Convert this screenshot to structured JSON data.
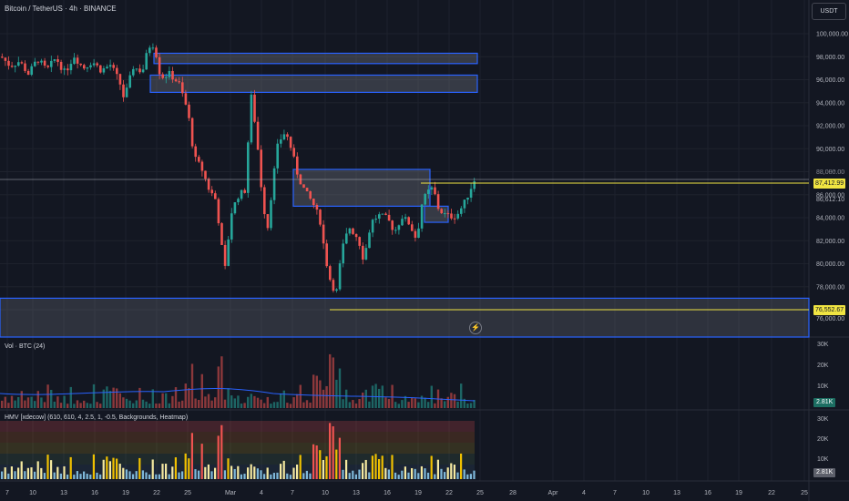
{
  "header": {
    "title": "Bitcoin / TetherUS · 4h · BINANCE",
    "currency_button": "USDT"
  },
  "price_axis": {
    "labels": [
      "100,000.00",
      "98,000.00",
      "96,000.00",
      "94,000.00",
      "92,000.00",
      "90,000.00",
      "88,000.00",
      "86,000.00",
      "84,000.00",
      "82,000.00",
      "80,000.00",
      "78,000.00"
    ],
    "current_price": "87,412.99",
    "hidden_price": "88,086.00",
    "extra_price": "86,612.10",
    "low_price": "76,552.67",
    "lower_label": "76,000.00"
  },
  "volume_pane": {
    "label": "Vol · BTC (24)",
    "axis": [
      "30K",
      "20K",
      "10K"
    ],
    "current": "2.81K"
  },
  "hmv_pane": {
    "label": "HMV [xdecow] (610, 610, 4, 2.5, 1, -0.5, Backgrounds, Heatmap)",
    "axis": [
      "30K",
      "20K",
      "10K"
    ],
    "current": "2.81K"
  },
  "time_axis": {
    "labels": [
      "7",
      "10",
      "13",
      "16",
      "19",
      "22",
      "25",
      "Mar",
      "4",
      "7",
      "10",
      "13",
      "16",
      "19",
      "22",
      "25",
      "28",
      "Apr",
      "4",
      "7",
      "10",
      "13",
      "16",
      "19",
      "22",
      "25"
    ]
  },
  "colors": {
    "up": "#26a69a",
    "down": "#ef5350",
    "zone_border": "#2962ff",
    "price_line": "#f0e442",
    "background": "#131722"
  },
  "icons": {
    "bolt": "lightning-bolt-icon"
  }
}
